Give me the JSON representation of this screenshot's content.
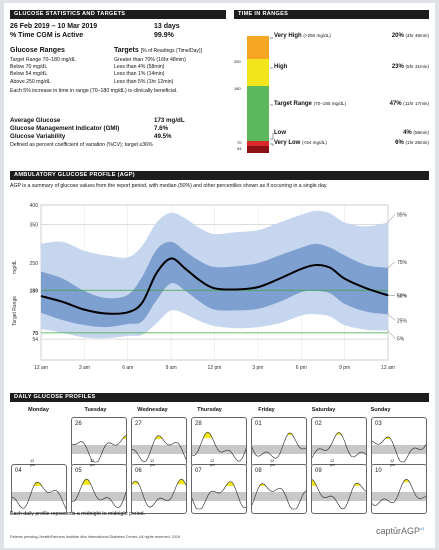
{
  "sections": {
    "glucose_stats": "GLUCOSE STATISTICS AND TARGETS",
    "tir": "TIME IN RANGES",
    "agp": "AMBULATORY GLUCOSE PROFILE (AGP)",
    "daily": "DAILY GLUCOSE PROFILES"
  },
  "stats": {
    "date_range": "26 Feb 2019 – 10 Mar 2019",
    "days": "13 days",
    "cgm_label": "% Time CGM is Active",
    "cgm_value": "99.9%",
    "ranges_header": "Glucose Ranges",
    "targets_header": "Targets",
    "targets_sub": "[% of Readings (Time/Day)]",
    "rows": [
      {
        "range": "Target Range 70–180 mg/dL",
        "target": "Greater than 70% (16hr 48min)"
      },
      {
        "range": "Below 70 mg/dL",
        "target": "Less than 4% (58min)"
      },
      {
        "range": "Below 54 mg/dL",
        "target": "Less than 1% (14min)"
      },
      {
        "range": "Above 250 mg/dL",
        "target": "Less than 5% (1hr 12min)"
      }
    ],
    "note": "Each 5% increase in time in range (70–180 mg/dL) is clinically beneficial.",
    "avg_label": "Average Glucose",
    "avg_value": "173 mg/dL",
    "gmi_label": "Glucose Management Indicator (GMI)",
    "gmi_value": "7.6%",
    "var_label": "Glucose Variability",
    "var_value": "49.5%",
    "var_note": "Defined as percent coefficient of variation (%CV); target ≤36%"
  },
  "tir": {
    "colors": {
      "very_high": "#f5a623",
      "high": "#f2e51c",
      "target": "#5cb85c",
      "low": "#d9262b",
      "very_low": "#8b1014"
    },
    "fractions": {
      "very_high": 20,
      "high": 23,
      "target": 47,
      "low": 4,
      "very_low": 6
    },
    "axis": [
      "250",
      "180",
      "70",
      "54"
    ],
    "rows": [
      {
        "name": "Very High",
        "range": "(>250 mg/dL)",
        "pct": "20%",
        "time": "(4hr 48min)"
      },
      {
        "name": "High",
        "range": "",
        "pct": "23%",
        "time": "(5hr 31min)"
      },
      {
        "name": "Target Range",
        "range": "(70–180 mg/dL)",
        "pct": "47%",
        "time": "(11hr 17min)"
      },
      {
        "name": "Low",
        "range": "",
        "pct": "4%",
        "time": "(58min)"
      },
      {
        "name": "Very Low",
        "range": "(<54 mg/dL)",
        "pct": "6%",
        "time": "(1hr 26min)"
      }
    ]
  },
  "agp": {
    "description": "AGP is a summary of glucose values from the report period, with median (50%) and other percentiles shown as if occurring in a single day.",
    "y_unit": "mg/dL",
    "y_side": "Target Range",
    "y_ticks": [
      "350",
      "250",
      "180",
      "70",
      "54"
    ],
    "y_top": "400",
    "x_ticks": [
      "12 am",
      "3 am",
      "6 am",
      "9 am",
      "12 pm",
      "3 pm",
      "6 pm",
      "9 pm",
      "12 am"
    ],
    "pct_labels": [
      "95%",
      "75%",
      "50%",
      "25%",
      "5%"
    ]
  },
  "chart_data": {
    "type": "area",
    "title": "AMBULATORY GLUCOSE PROFILE (AGP)",
    "xlabel": "",
    "ylabel": "mg/dL",
    "x": [
      0,
      1.5,
      3,
      4.5,
      6,
      7,
      8,
      9,
      10,
      11,
      12,
      13.5,
      15,
      16.5,
      18,
      19,
      20,
      21,
      22.5,
      24
    ],
    "ylim": [
      0,
      400
    ],
    "series": [
      {
        "name": "95%",
        "values": [
          300,
          305,
          282,
          270,
          265,
          295,
          355,
          380,
          365,
          340,
          325,
          330,
          335,
          355,
          375,
          385,
          378,
          355,
          345,
          355
        ]
      },
      {
        "name": "75%",
        "values": [
          228,
          210,
          178,
          160,
          168,
          215,
          285,
          305,
          280,
          255,
          240,
          242,
          250,
          270,
          290,
          300,
          290,
          270,
          245,
          238
        ]
      },
      {
        "name": "50%",
        "values": [
          165,
          150,
          130,
          120,
          123,
          148,
          225,
          262,
          235,
          205,
          185,
          182,
          188,
          210,
          235,
          245,
          238,
          210,
          185,
          167
        ]
      },
      {
        "name": "25%",
        "values": [
          122,
          103,
          90,
          85,
          93,
          100,
          155,
          198,
          178,
          150,
          130,
          128,
          132,
          150,
          175,
          178,
          172,
          145,
          125,
          118
        ]
      },
      {
        "name": "5%",
        "values": [
          80,
          70,
          58,
          56,
          62,
          65,
          95,
          128,
          118,
          100,
          88,
          82,
          85,
          95,
          115,
          118,
          112,
          90,
          78,
          76
        ]
      }
    ]
  },
  "daily": {
    "days": [
      "Monday",
      "Tuesday",
      "Wednesday",
      "Thursday",
      "Friday",
      "Saturday",
      "Sunday"
    ],
    "row1": [
      "",
      "26",
      "27",
      "28",
      "01",
      "02",
      "03"
    ],
    "row2": [
      "04",
      "05",
      "06",
      "07",
      "08",
      "09",
      "10"
    ],
    "tick_12pm": "12 pm",
    "footer": "Each daily profile represents a midnight to midnight period."
  },
  "footer": {
    "legal": "Patents pending–HealthPartners Institute dba International Diabetes Center–All rights reserved. 2019",
    "brand": "captūrAGP",
    "brand_version": "v3"
  }
}
